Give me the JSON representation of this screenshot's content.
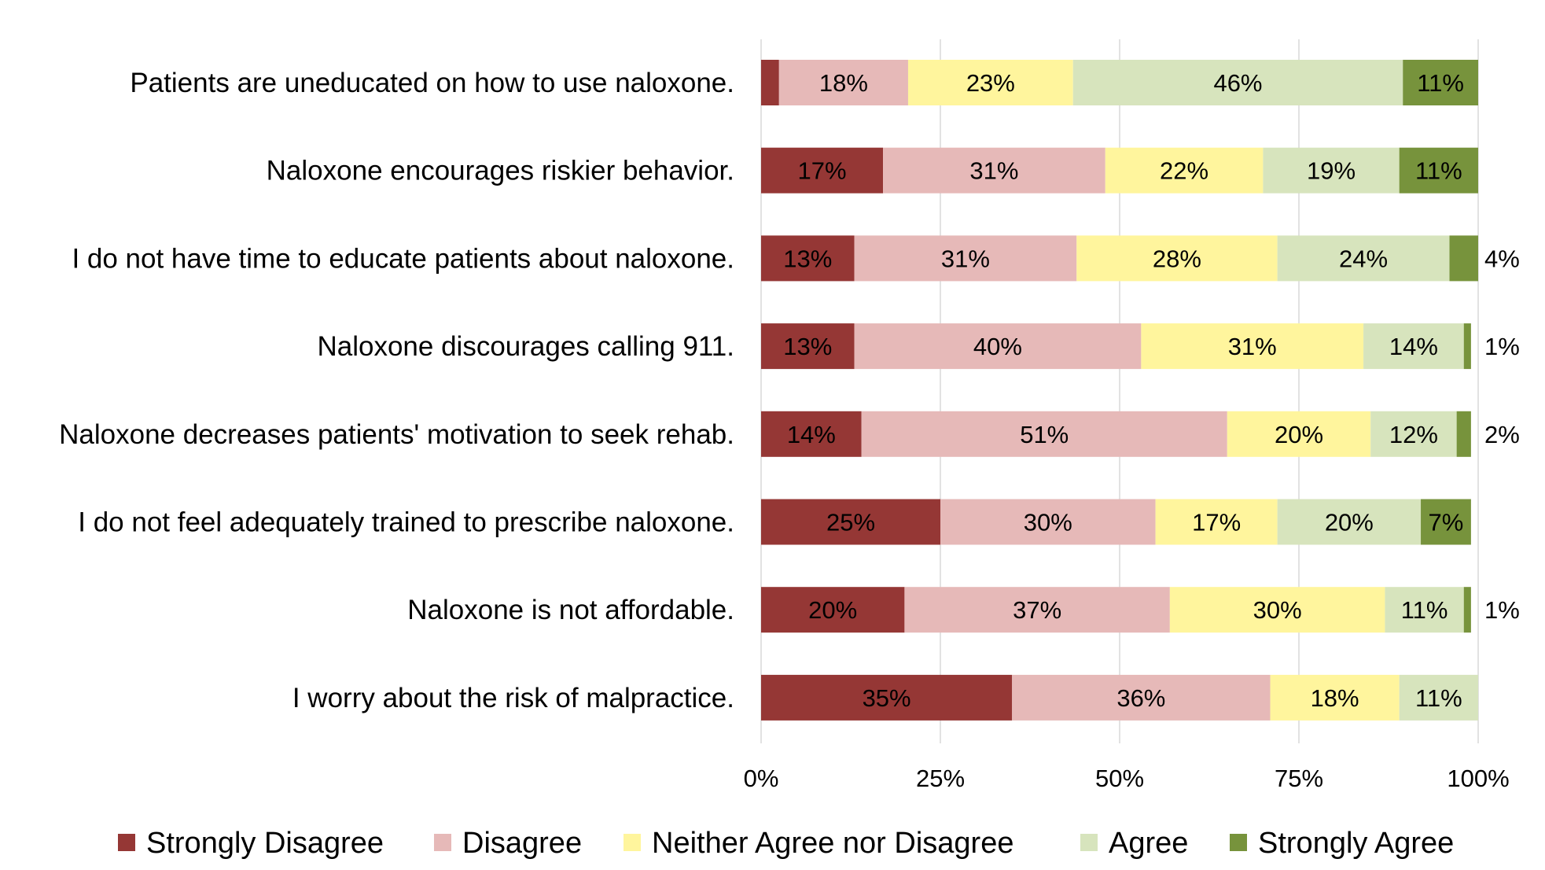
{
  "chart_data": {
    "type": "bar",
    "orientation": "horizontal",
    "stacked": true,
    "stack_mode": "percent",
    "title": "",
    "xlabel": "",
    "ylabel": "",
    "xlim": [
      0,
      100
    ],
    "x_ticks": [
      "0%",
      "25%",
      "50%",
      "75%",
      "100%"
    ],
    "grid": true,
    "legend_position": "bottom",
    "categories": [
      "Patients are uneducated on how to use naloxone.",
      "Naloxone encourages riskier behavior.",
      "I do not have time to educate patients about naloxone.",
      "Naloxone discourages calling 911.",
      "Naloxone decreases patients' motivation to seek rehab.",
      "I do not feel adequately trained to prescribe naloxone.",
      "Naloxone is not affordable.",
      "I worry about the risk of malpractice."
    ],
    "series": [
      {
        "name": "Strongly Disagree",
        "color": "#953735",
        "values": [
          2.5,
          17,
          13,
          13,
          14,
          25,
          20,
          35
        ],
        "labels": [
          "",
          "17%",
          "13%",
          "13%",
          "14%",
          "25%",
          "20%",
          "35%"
        ]
      },
      {
        "name": "Disagree",
        "color": "#e6b9b8",
        "values": [
          18,
          31,
          31,
          40,
          51,
          30,
          37,
          36
        ],
        "labels": [
          "18%",
          "31%",
          "31%",
          "40%",
          "51%",
          "30%",
          "37%",
          "36%"
        ]
      },
      {
        "name": "Neither Agree nor Disagree",
        "color": "#fff59d",
        "values": [
          23,
          22,
          28,
          31,
          20,
          17,
          30,
          18
        ],
        "labels": [
          "23%",
          "22%",
          "28%",
          "31%",
          "20%",
          "17%",
          "30%",
          "18%"
        ]
      },
      {
        "name": "Agree",
        "color": "#d7e4bd",
        "values": [
          46,
          19,
          24,
          14,
          12,
          20,
          11,
          11
        ],
        "labels": [
          "46%",
          "19%",
          "24%",
          "14%",
          "12%",
          "20%",
          "11%",
          "11%"
        ]
      },
      {
        "name": "Strongly Agree",
        "color": "#77933c",
        "values": [
          11,
          11,
          4,
          1,
          2,
          7,
          1,
          0
        ],
        "labels": [
          "11%",
          "11%",
          "4%",
          "1%",
          "2%",
          "7%",
          "1%",
          ""
        ],
        "label_outside": [
          false,
          false,
          true,
          true,
          true,
          false,
          true,
          false
        ]
      }
    ]
  }
}
